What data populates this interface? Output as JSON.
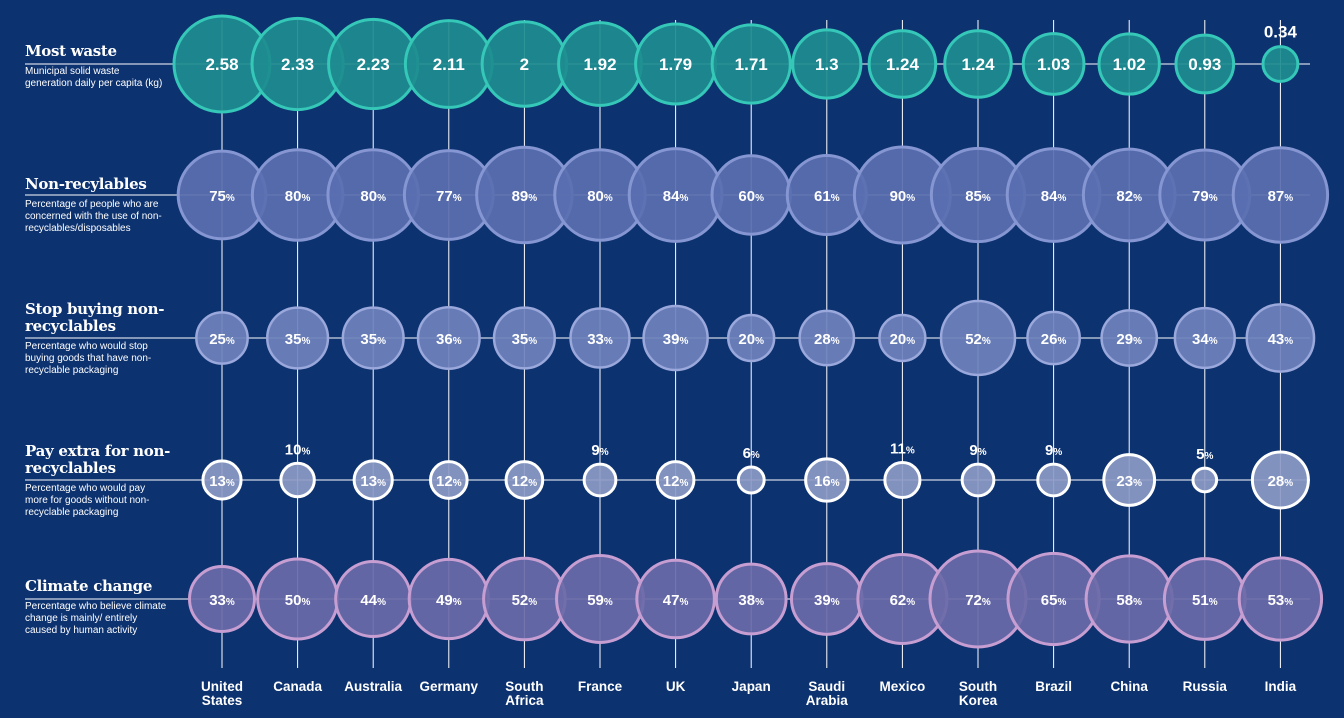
{
  "rows": [
    {
      "title": "Most waste",
      "desc": "Municipal solid waste generation daily per capita (kg)"
    },
    {
      "title": "Non-recylables",
      "desc": "Percentage of people who are concerned with the use of non-recyclables/disposables"
    },
    {
      "title": "Stop buying non-recyclables",
      "desc": "Percentage who would stop buying goods that have non-recyclable packaging"
    },
    {
      "title": "Pay extra for non-recyclables",
      "desc": "Percentage who would pay more for goods without non-recyclable packaging"
    },
    {
      "title": "Climate change",
      "desc": "Percentage who believe climate change is mainly/ entirely caused by human activity"
    }
  ],
  "chart_data": {
    "type": "bubble-matrix",
    "categories": [
      "United States",
      "Canada",
      "Australia",
      "Germany",
      "South Africa",
      "France",
      "UK",
      "Japan",
      "Saudi Arabia",
      "Mexico",
      "South Korea",
      "Brazil",
      "China",
      "Russia",
      "India"
    ],
    "category_lines": [
      [
        "United",
        "States"
      ],
      [
        "Canada"
      ],
      [
        "Australia"
      ],
      [
        "Germany"
      ],
      [
        "South",
        "Africa"
      ],
      [
        "France"
      ],
      [
        "UK"
      ],
      [
        "Japan"
      ],
      [
        "Saudi",
        "Arabia"
      ],
      [
        "Mexico"
      ],
      [
        "South",
        "Korea"
      ],
      [
        "Brazil"
      ],
      [
        "China"
      ],
      [
        "Russia"
      ],
      [
        "India"
      ]
    ],
    "series": [
      {
        "name": "Most waste",
        "unit": "",
        "values": [
          2.58,
          2.33,
          2.23,
          2.11,
          2,
          1.92,
          1.79,
          1.71,
          1.3,
          1.24,
          1.24,
          1.03,
          1.02,
          0.93,
          0.34
        ],
        "labels": [
          "2.58",
          "2.33",
          "2.23",
          "2.11",
          "2",
          "1.92",
          "1.79",
          "1.71",
          "1.3",
          "1.24",
          "1.24",
          "1.03",
          "1.02",
          "0.93",
          "0.34"
        ]
      },
      {
        "name": "Non-recylables",
        "unit": "%",
        "values": [
          75,
          80,
          80,
          77,
          89,
          80,
          84,
          60,
          61,
          90,
          85,
          84,
          82,
          79,
          87
        ]
      },
      {
        "name": "Stop buying non-recyclables",
        "unit": "%",
        "values": [
          25,
          35,
          35,
          36,
          35,
          33,
          39,
          20,
          28,
          20,
          52,
          26,
          29,
          34,
          43
        ]
      },
      {
        "name": "Pay extra for non-recyclables",
        "unit": "%",
        "values": [
          13,
          10,
          13,
          12,
          12,
          9,
          12,
          6,
          16,
          11,
          9,
          9,
          23,
          5,
          28
        ]
      },
      {
        "name": "Climate change",
        "unit": "%",
        "values": [
          33,
          50,
          44,
          49,
          52,
          59,
          47,
          38,
          39,
          62,
          72,
          65,
          58,
          51,
          53
        ]
      }
    ],
    "colors": {
      "background": "#0d3270",
      "waste_fill": "#1d8c8f",
      "waste_stroke": "#35c7b8",
      "concern_fill": "#5a6fb0",
      "concern_stroke": "#8596d2",
      "stop_fill": "#6f82bd",
      "stop_stroke": "#9aa8dc",
      "pay_fill": "#8c9ac6",
      "pay_stroke": "#ffffff",
      "climate_fill": "#6a6aa8",
      "climate_stroke": "#c79ed2",
      "line": "#ffffff"
    }
  }
}
